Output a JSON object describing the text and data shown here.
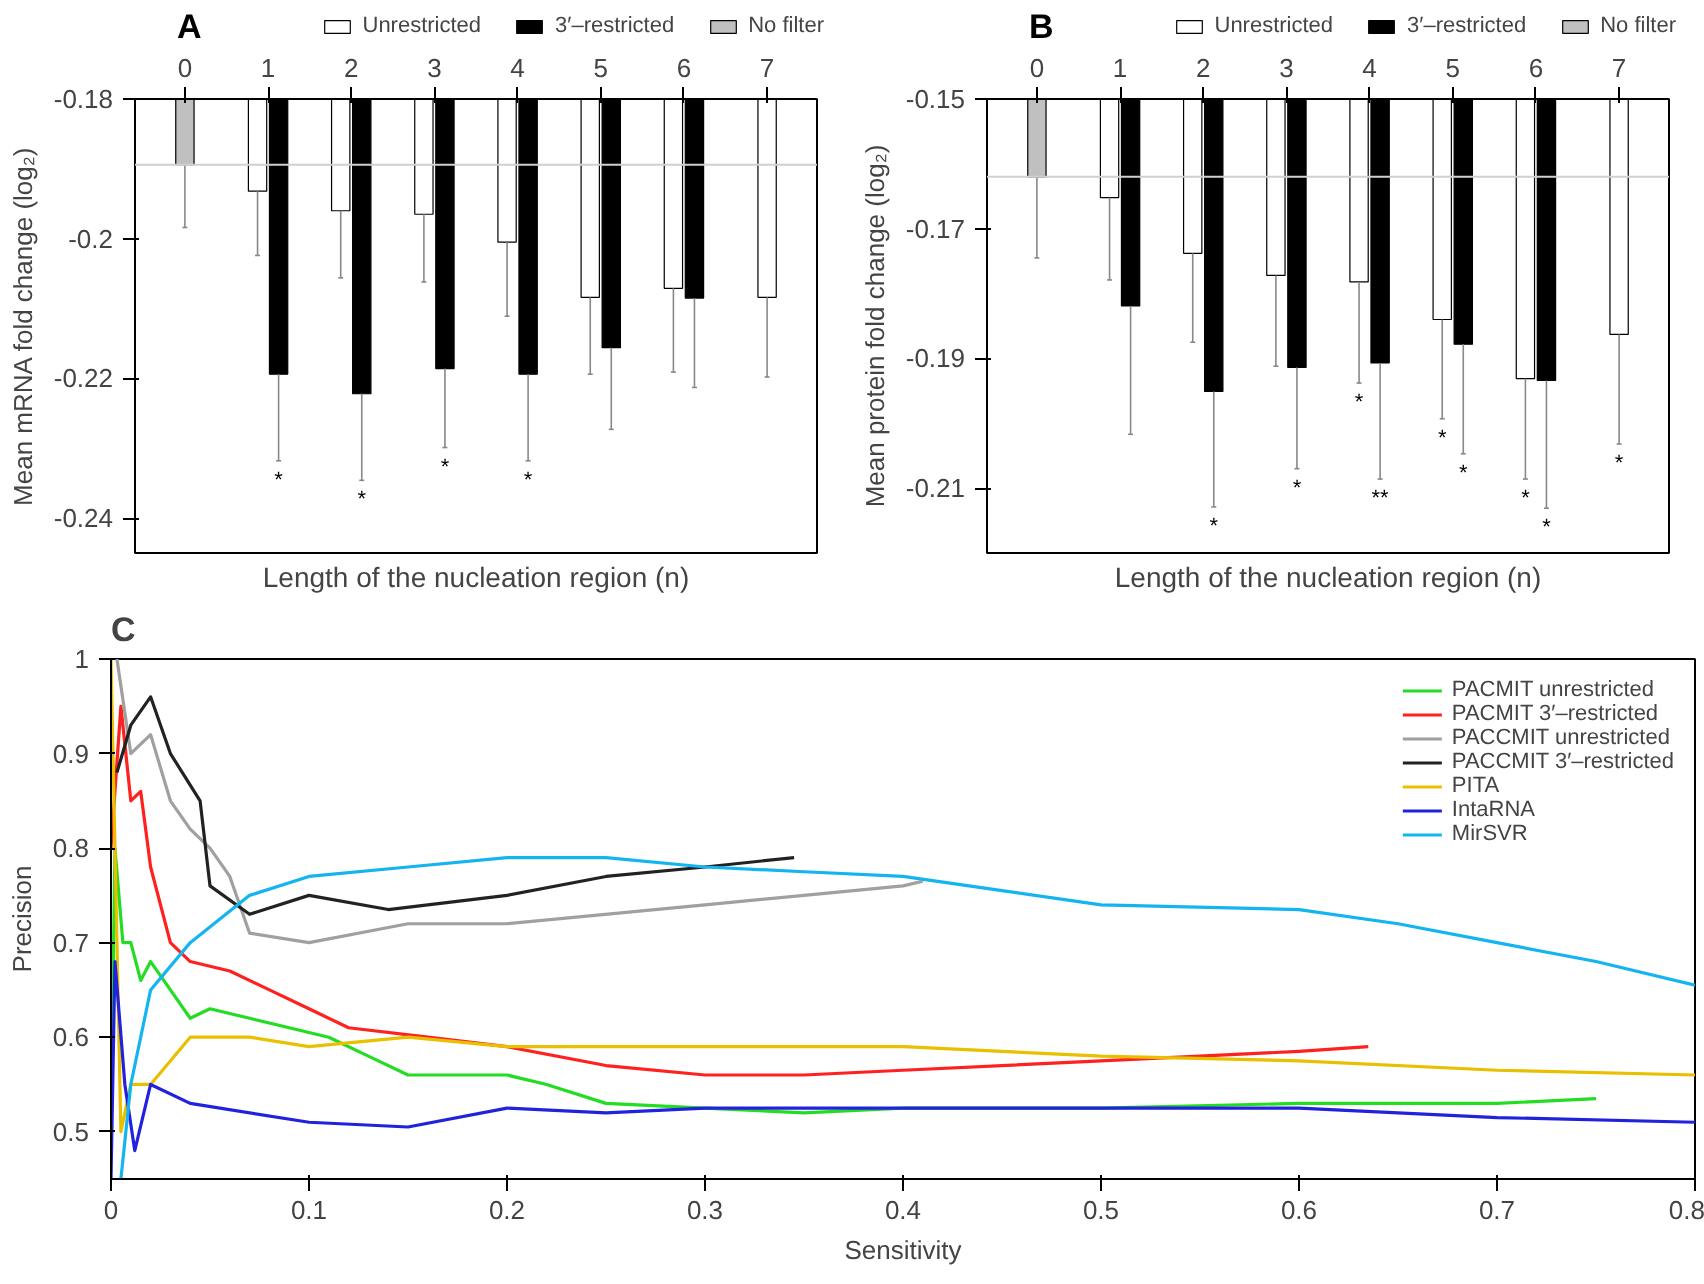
{
  "chart_data": [
    {
      "type": "bar",
      "title": "A",
      "xlabel": "Length of the nucleation region (n)",
      "ylabel": "Mean mRNA fold change (log₂)",
      "categories": [
        "0",
        "1",
        "2",
        "3",
        "4",
        "5",
        "6",
        "7"
      ],
      "ylim": [
        -0.245,
        -0.18
      ],
      "yticks": [
        -0.18,
        -0.2,
        -0.22,
        -0.24
      ],
      "grid": false,
      "legend": "top",
      "series": [
        {
          "name": "Unrestricted",
          "color": "#ffffff",
          "values": [
            null,
            -0.1932,
            -0.196,
            -0.1965,
            -0.2005,
            -0.2084,
            -0.2071,
            -0.2084
          ],
          "errors": [
            null,
            [
              -0.2024,
              -0.1932
            ],
            [
              -0.2056,
              -0.196
            ],
            [
              -0.2062,
              -0.1965
            ],
            [
              -0.2111,
              -0.2005
            ],
            [
              -0.2194,
              -0.2084
            ],
            [
              -0.2191,
              -0.2071
            ],
            [
              -0.2198,
              -0.2084
            ]
          ]
        },
        {
          "name": "3′–restricted",
          "color": "#000000",
          "values": [
            null,
            -0.2194,
            -0.2222,
            -0.2186,
            -0.2194,
            -0.2156,
            -0.2085,
            null
          ],
          "errors": [
            null,
            [
              -0.2318,
              -0.2194
            ],
            [
              -0.2346,
              -0.2222
            ],
            [
              -0.2299,
              -0.2186
            ],
            [
              -0.2318,
              -0.2194
            ],
            [
              -0.2273,
              -0.2156
            ],
            [
              -0.2213,
              -0.2085
            ],
            null
          ]
        },
        {
          "name": "No filter",
          "color": "#c0c0c0",
          "values": [
            -0.1894,
            null,
            null,
            null,
            null,
            null,
            null,
            null
          ],
          "errors": [
            [
              -0.1984,
              -0.1894
            ],
            null,
            null,
            null,
            null,
            null,
            null,
            null
          ]
        }
      ],
      "ref_lines": [
        {
          "axis": "y",
          "value": -0.1894,
          "color": "#d0d0d0"
        }
      ],
      "annotations": [
        {
          "text": "*",
          "x": "1",
          "y": -0.2318
        },
        {
          "text": "*",
          "x": "2",
          "y": -0.2346
        },
        {
          "text": "*",
          "x": "3",
          "y": -0.2299
        },
        {
          "text": "*",
          "x": "4",
          "y": -0.2318
        }
      ]
    },
    {
      "type": "bar",
      "title": "B",
      "xlabel": "Length of the nucleation region (n)",
      "ylabel": "Mean protein fold change (log₂)",
      "categories": [
        "0",
        "1",
        "2",
        "3",
        "4",
        "5",
        "6",
        "7"
      ],
      "ylim": [
        -0.22,
        -0.15
      ],
      "yticks": [
        -0.15,
        -0.17,
        -0.19,
        -0.21
      ],
      "grid": false,
      "legend": "top",
      "series": [
        {
          "name": "Unrestricted",
          "color": "#ffffff",
          "values": [
            null,
            -0.1652,
            -0.1738,
            -0.1772,
            -0.1782,
            -0.184,
            -0.1931,
            -0.1863
          ],
          "errors": [
            null,
            [
              -0.1779,
              -0.1652
            ],
            [
              -0.1875,
              -0.1738
            ],
            [
              -0.1912,
              -0.1772
            ],
            [
              -0.1938,
              -0.1782
            ],
            [
              -0.1993,
              -0.184
            ],
            [
              -0.2086,
              -0.1931
            ],
            [
              -0.2032,
              -0.1863
            ]
          ]
        },
        {
          "name": "3′–restricted",
          "color": "#000000",
          "values": [
            null,
            -0.1819,
            -0.1951,
            -0.1914,
            -0.1907,
            -0.1878,
            -0.1934,
            null
          ],
          "errors": [
            null,
            [
              -0.2017,
              -0.1819
            ],
            [
              -0.2129,
              -0.1951
            ],
            [
              -0.207,
              -0.1914
            ],
            [
              -0.2086,
              -0.1907
            ],
            [
              -0.2047,
              -0.1878
            ],
            [
              -0.2131,
              -0.1934
            ],
            null
          ]
        },
        {
          "name": "No filter",
          "color": "#c0c0c0",
          "values": [
            -0.162,
            null,
            null,
            null,
            null,
            null,
            null,
            null
          ],
          "errors": [
            [
              -0.1745,
              -0.162
            ],
            null,
            null,
            null,
            null,
            null,
            null,
            null
          ]
        }
      ],
      "ref_lines": [
        {
          "axis": "y",
          "value": -0.162,
          "color": "#d0d0d0"
        }
      ],
      "annotations": [
        {
          "text": "*",
          "x": "2",
          "y": -0.2129
        },
        {
          "text": "*",
          "x": "3",
          "y": -0.207
        },
        {
          "text": "*",
          "x": "4",
          "y": -0.1938
        },
        {
          "text": "**",
          "x": "4",
          "y": -0.2086
        },
        {
          "text": "*",
          "x": "5",
          "y": -0.1993
        },
        {
          "text": "*",
          "x": "5",
          "y": -0.2047
        },
        {
          "text": "*",
          "x": "6",
          "y": -0.2086
        },
        {
          "text": "*",
          "x": "6",
          "y": -0.2131
        },
        {
          "text": "*",
          "x": "7",
          "y": -0.2032
        }
      ]
    },
    {
      "type": "line",
      "title": "C",
      "xlabel": "Sensitivity",
      "ylabel": "Precision",
      "xlim": [
        0,
        0.8
      ],
      "xticks": [
        0,
        0.1,
        0.2,
        0.3,
        0.4,
        0.5,
        0.6,
        0.7,
        0.8
      ],
      "ylim": [
        0.45,
        1
      ],
      "yticks": [
        0.5,
        0.6,
        0.7,
        0.8,
        0.9,
        1
      ],
      "grid": false,
      "legend": "top right",
      "series": [
        {
          "name": "PACMIT unrestricted",
          "color": "#22dd22",
          "x": [
            0,
            0.002,
            0.006,
            0.01,
            0.015,
            0.02,
            0.03,
            0.04,
            0.05,
            0.07,
            0.09,
            0.11,
            0.13,
            0.15,
            0.2,
            0.22,
            0.25,
            0.3,
            0.35,
            0.4,
            0.5,
            0.6,
            0.7,
            0.75
          ],
          "values": [
            0.5,
            0.8,
            0.7,
            0.7,
            0.66,
            0.68,
            0.65,
            0.62,
            0.63,
            0.62,
            0.61,
            0.6,
            0.58,
            0.56,
            0.56,
            0.55,
            0.53,
            0.525,
            0.52,
            0.525,
            0.525,
            0.53,
            0.53,
            0.535
          ]
        },
        {
          "name": "PACMIT 3′–restricted",
          "color": "#ff2020",
          "x": [
            0,
            0.005,
            0.01,
            0.015,
            0.02,
            0.03,
            0.04,
            0.06,
            0.08,
            0.1,
            0.12,
            0.16,
            0.2,
            0.25,
            0.3,
            0.35,
            0.4,
            0.5,
            0.6,
            0.635
          ],
          "values": [
            0.8,
            0.95,
            0.85,
            0.86,
            0.78,
            0.7,
            0.68,
            0.67,
            0.65,
            0.63,
            0.61,
            0.6,
            0.59,
            0.57,
            0.56,
            0.56,
            0.565,
            0.575,
            0.585,
            0.59
          ]
        },
        {
          "name": "PACCMIT unrestricted",
          "color": "#a0a0a0",
          "x": [
            0.003,
            0.01,
            0.02,
            0.03,
            0.04,
            0.05,
            0.06,
            0.07,
            0.1,
            0.15,
            0.2,
            0.3,
            0.35,
            0.4,
            0.41
          ],
          "values": [
            1,
            0.9,
            0.92,
            0.85,
            0.82,
            0.8,
            0.77,
            0.71,
            0.7,
            0.72,
            0.72,
            0.74,
            0.75,
            0.76,
            0.765
          ]
        },
        {
          "name": "PACCMIT 3′–restricted",
          "color": "#222222",
          "x": [
            0.003,
            0.01,
            0.02,
            0.03,
            0.045,
            0.05,
            0.07,
            0.1,
            0.14,
            0.2,
            0.25,
            0.3,
            0.345
          ],
          "values": [
            0.88,
            0.93,
            0.96,
            0.9,
            0.85,
            0.76,
            0.73,
            0.75,
            0.735,
            0.75,
            0.77,
            0.78,
            0.79
          ]
        },
        {
          "name": "PITA",
          "color": "#e8c000",
          "x": [
            0,
            0.005,
            0.01,
            0.02,
            0.04,
            0.07,
            0.1,
            0.15,
            0.2,
            0.3,
            0.4,
            0.5,
            0.6,
            0.7,
            0.8
          ],
          "values": [
            1,
            0.5,
            0.55,
            0.55,
            0.6,
            0.6,
            0.59,
            0.6,
            0.59,
            0.59,
            0.59,
            0.58,
            0.575,
            0.565,
            0.56
          ]
        },
        {
          "name": "IntaRNA",
          "color": "#2222dd",
          "x": [
            0,
            0.002,
            0.007,
            0.012,
            0.02,
            0.04,
            0.1,
            0.15,
            0.2,
            0.25,
            0.3,
            0.4,
            0.6,
            0.7,
            0.8
          ],
          "values": [
            0.45,
            0.68,
            0.55,
            0.48,
            0.55,
            0.53,
            0.51,
            0.505,
            0.525,
            0.52,
            0.525,
            0.525,
            0.525,
            0.515,
            0.51
          ]
        },
        {
          "name": "MirSVR",
          "color": "#14b4f0",
          "x": [
            0.005,
            0.01,
            0.02,
            0.04,
            0.07,
            0.1,
            0.15,
            0.2,
            0.25,
            0.3,
            0.35,
            0.4,
            0.45,
            0.5,
            0.6,
            0.65,
            0.7,
            0.75,
            0.8
          ],
          "values": [
            0.45,
            0.55,
            0.65,
            0.7,
            0.75,
            0.77,
            0.78,
            0.79,
            0.79,
            0.78,
            0.775,
            0.77,
            0.755,
            0.74,
            0.735,
            0.72,
            0.7,
            0.68,
            0.655
          ]
        }
      ]
    }
  ]
}
